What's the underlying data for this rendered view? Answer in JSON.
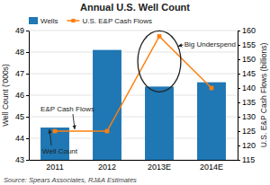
{
  "chart_data": {
    "type": "bar",
    "title": "Annual U.S. Well Count",
    "categories": [
      "2011",
      "2012",
      "2013E",
      "2014E"
    ],
    "series": [
      {
        "name": "Wells",
        "type": "bar",
        "values": [
          44.5,
          48.1,
          46.4,
          46.6
        ]
      },
      {
        "name": "U.S. E&P Cash Flows",
        "type": "line",
        "axis": "y2",
        "marker": "square",
        "values": [
          125,
          125,
          158,
          140
        ]
      }
    ],
    "ylabel": "Well Count ('000s)",
    "y2label": "U.S. E&P Cash Flows (billions)",
    "ylim": [
      43,
      49
    ],
    "yticks": [
      43,
      44,
      45,
      46,
      47,
      48,
      49
    ],
    "y2lim": [
      115,
      160
    ],
    "y2ticks": [
      115,
      120,
      125,
      130,
      135,
      140,
      145,
      150,
      155,
      160
    ],
    "grid": true,
    "legend": "upper left",
    "annotations": [
      "E&P Cash Flows",
      "Well Count",
      "Big Underspend"
    ],
    "source": "Source: Spears Associates, RJ&A Estimates"
  }
}
